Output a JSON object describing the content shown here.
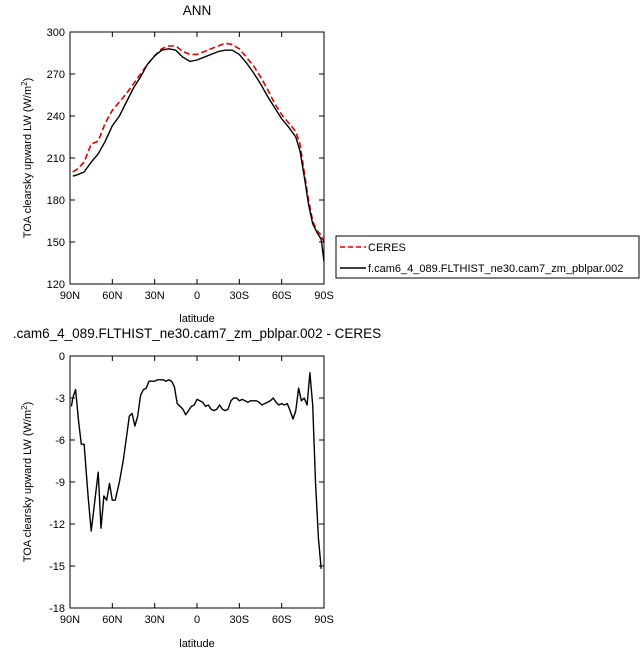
{
  "chart_data": [
    {
      "type": "line",
      "title": "ANN",
      "xlabel": "latitude",
      "ylabel": "TOA clearsky upward LW (W/m",
      "ylabel_sup": "2",
      "ylabel_close": ")",
      "xlim": [
        90,
        -90
      ],
      "ylim": [
        120,
        300
      ],
      "x_ticks": [
        90,
        60,
        30,
        0,
        -30,
        -60,
        -90
      ],
      "x_tick_labels": [
        "90N",
        "60N",
        "30N",
        "0",
        "30S",
        "60S",
        "90S"
      ],
      "y_ticks": [
        120,
        150,
        180,
        210,
        240,
        270,
        300
      ],
      "y_tick_labels": [
        "120",
        "150",
        "180",
        "210",
        "240",
        "270",
        "300"
      ],
      "legend_position": "right",
      "series": [
        {
          "name": "CERES",
          "color": "#e00000",
          "style": "dashed",
          "points": [
            [
              88,
              200
            ],
            [
              85,
              202
            ],
            [
              80,
              207
            ],
            [
              75,
              220
            ],
            [
              70,
              222
            ],
            [
              65,
              235
            ],
            [
              60,
              244
            ],
            [
              55,
              250
            ],
            [
              50,
              256
            ],
            [
              45,
              263
            ],
            [
              40,
              270
            ],
            [
              35,
              277
            ],
            [
              30,
              283
            ],
            [
              25,
              288
            ],
            [
              20,
              290
            ],
            [
              15,
              290
            ],
            [
              10,
              286
            ],
            [
              5,
              284
            ],
            [
              0,
              284
            ],
            [
              -5,
              286
            ],
            [
              -10,
              288
            ],
            [
              -15,
              290
            ],
            [
              -20,
              292
            ],
            [
              -25,
              291
            ],
            [
              -30,
              288
            ],
            [
              -35,
              282
            ],
            [
              -40,
              276
            ],
            [
              -45,
              268
            ],
            [
              -50,
              259
            ],
            [
              -55,
              249
            ],
            [
              -60,
              241
            ],
            [
              -65,
              235
            ],
            [
              -70,
              229
            ],
            [
              -73,
              220
            ],
            [
              -76,
              200
            ],
            [
              -79,
              180
            ],
            [
              -82,
              165
            ],
            [
              -85,
              158
            ],
            [
              -88,
              155
            ],
            [
              -90,
              150
            ]
          ]
        },
        {
          "name": "f.cam6_4_089.FLTHIST_ne30.cam7_zm_pblpar.002",
          "color": "#000000",
          "style": "solid",
          "points": [
            [
              88,
              197
            ],
            [
              85,
              198
            ],
            [
              80,
              200
            ],
            [
              75,
              207
            ],
            [
              70,
              213
            ],
            [
              65,
              222
            ],
            [
              60,
              233
            ],
            [
              55,
              240
            ],
            [
              50,
              250
            ],
            [
              45,
              260
            ],
            [
              40,
              268
            ],
            [
              35,
              277
            ],
            [
              30,
              283
            ],
            [
              25,
              287
            ],
            [
              20,
              288
            ],
            [
              15,
              287
            ],
            [
              10,
              282
            ],
            [
              5,
              279
            ],
            [
              0,
              280
            ],
            [
              -5,
              282
            ],
            [
              -10,
              284
            ],
            [
              -15,
              286
            ],
            [
              -20,
              287
            ],
            [
              -25,
              287
            ],
            [
              -30,
              284
            ],
            [
              -35,
              278
            ],
            [
              -40,
              271
            ],
            [
              -45,
              263
            ],
            [
              -50,
              254
            ],
            [
              -55,
              246
            ],
            [
              -60,
              238
            ],
            [
              -65,
              232
            ],
            [
              -70,
              225
            ],
            [
              -73,
              215
            ],
            [
              -76,
              197
            ],
            [
              -79,
              177
            ],
            [
              -82,
              163
            ],
            [
              -85,
              157
            ],
            [
              -88,
              152
            ],
            [
              -90,
              136
            ]
          ]
        }
      ]
    },
    {
      "type": "line",
      "title": ".cam6_4_089.FLTHIST_ne30.cam7_zm_pblpar.002 - CERES",
      "xlabel": "latitude",
      "ylabel": "TOA clearsky upward LW (W/m",
      "ylabel_sup": "2",
      "ylabel_close": ")",
      "xlim": [
        90,
        -90
      ],
      "ylim": [
        -18,
        0
      ],
      "x_ticks": [
        90,
        60,
        30,
        0,
        -30,
        -60,
        -90
      ],
      "x_tick_labels": [
        "90N",
        "60N",
        "30N",
        "0",
        "30S",
        "60S",
        "90S"
      ],
      "y_ticks": [
        0,
        -3,
        -6,
        -9,
        -12,
        -15,
        -18
      ],
      "y_tick_labels": [
        "0",
        "-3",
        "-6",
        "-9",
        "-12",
        "-15",
        "-18"
      ],
      "series": [
        {
          "color": "#000000",
          "style": "solid",
          "points": [
            [
              89,
              -3.6
            ],
            [
              88,
              -3.0
            ],
            [
              86,
              -2.4
            ],
            [
              84,
              -4.6
            ],
            [
              82,
              -6.3
            ],
            [
              80,
              -6.3
            ],
            [
              77,
              -10.2
            ],
            [
              75,
              -12.5
            ],
            [
              72,
              -10.0
            ],
            [
              70,
              -8.3
            ],
            [
              68,
              -12.3
            ],
            [
              66,
              -10.0
            ],
            [
              64,
              -10.3
            ],
            [
              62,
              -9.1
            ],
            [
              60,
              -10.3
            ],
            [
              58,
              -10.3
            ],
            [
              55,
              -9.0
            ],
            [
              52,
              -7.3
            ],
            [
              48,
              -4.3
            ],
            [
              46,
              -4.1
            ],
            [
              44,
              -5.0
            ],
            [
              42,
              -4.3
            ],
            [
              40,
              -2.8
            ],
            [
              38,
              -2.4
            ],
            [
              36,
              -2.3
            ],
            [
              34,
              -1.8
            ],
            [
              32,
              -1.8
            ],
            [
              30,
              -1.8
            ],
            [
              28,
              -1.7
            ],
            [
              26,
              -1.7
            ],
            [
              24,
              -1.7
            ],
            [
              22,
              -1.8
            ],
            [
              20,
              -1.7
            ],
            [
              18,
              -1.8
            ],
            [
              16,
              -2.2
            ],
            [
              14,
              -3.4
            ],
            [
              12,
              -3.6
            ],
            [
              10,
              -3.8
            ],
            [
              8,
              -4.2
            ],
            [
              6,
              -3.9
            ],
            [
              4,
              -3.6
            ],
            [
              2,
              -3.5
            ],
            [
              0,
              -3.1
            ],
            [
              -2,
              -3.2
            ],
            [
              -4,
              -3.3
            ],
            [
              -6,
              -3.6
            ],
            [
              -8,
              -3.5
            ],
            [
              -10,
              -3.8
            ],
            [
              -12,
              -3.9
            ],
            [
              -14,
              -3.8
            ],
            [
              -16,
              -3.5
            ],
            [
              -18,
              -3.8
            ],
            [
              -20,
              -3.9
            ],
            [
              -22,
              -3.8
            ],
            [
              -24,
              -3.2
            ],
            [
              -26,
              -3.0
            ],
            [
              -28,
              -3.0
            ],
            [
              -30,
              -3.2
            ],
            [
              -32,
              -3.1
            ],
            [
              -34,
              -3.2
            ],
            [
              -36,
              -3.3
            ],
            [
              -38,
              -3.2
            ],
            [
              -40,
              -3.2
            ],
            [
              -42,
              -3.2
            ],
            [
              -44,
              -3.3
            ],
            [
              -46,
              -3.5
            ],
            [
              -48,
              -3.4
            ],
            [
              -50,
              -3.3
            ],
            [
              -52,
              -3.2
            ],
            [
              -54,
              -3.0
            ],
            [
              -56,
              -3.3
            ],
            [
              -58,
              -3.5
            ],
            [
              -60,
              -3.4
            ],
            [
              -62,
              -3.5
            ],
            [
              -64,
              -3.4
            ],
            [
              -66,
              -3.9
            ],
            [
              -68,
              -4.5
            ],
            [
              -70,
              -3.9
            ],
            [
              -72,
              -2.3
            ],
            [
              -74,
              -3.2
            ],
            [
              -76,
              -3.0
            ],
            [
              -78,
              -3.5
            ],
            [
              -80,
              -1.2
            ],
            [
              -82,
              -3.5
            ],
            [
              -84,
              -9.0
            ],
            [
              -86,
              -13.0
            ],
            [
              -88,
              -15.2
            ]
          ]
        }
      ]
    }
  ]
}
